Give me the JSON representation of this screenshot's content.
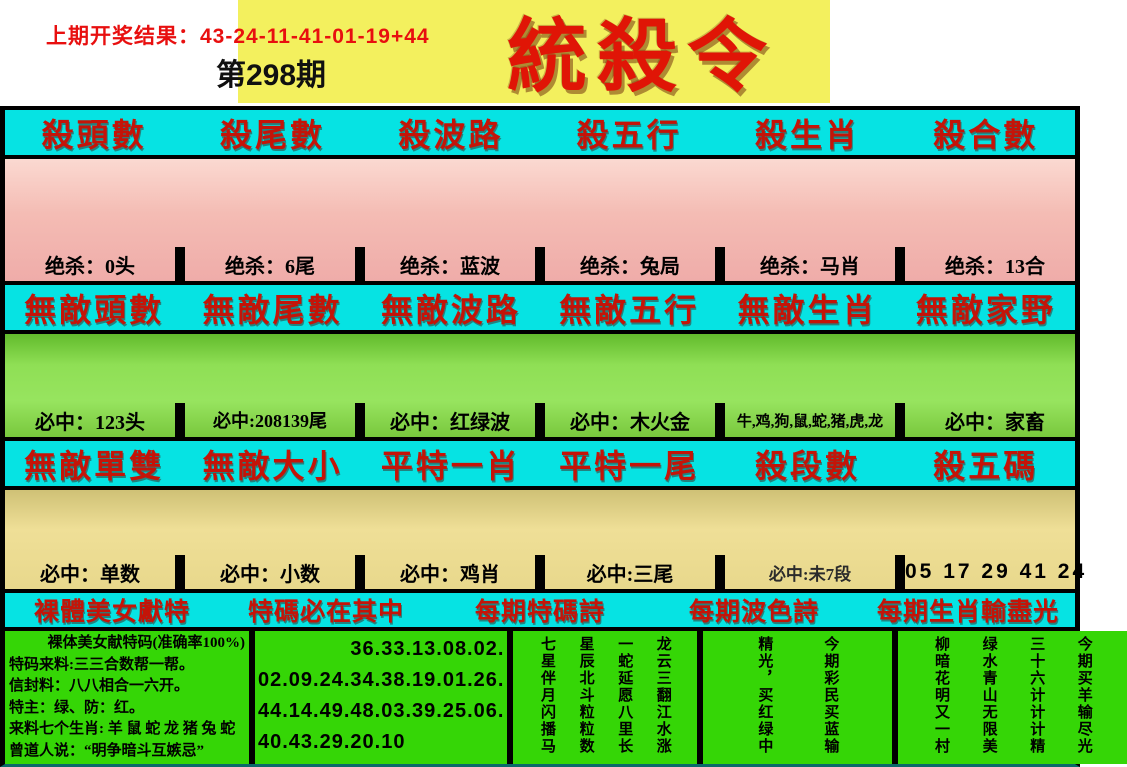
{
  "header": {
    "last_result": "上期开奖结果：43-24-11-41-01-19+44",
    "issue": "第298期",
    "title": "統殺令"
  },
  "colors": {
    "accent_red": "#e80f0f",
    "header_text_red": "#c41408",
    "cyan_row": "#06e3e3",
    "pink_band": "#f4bcb4",
    "green_band": "#8fdf55",
    "yellow_band": "#e8d88c",
    "bottom_green": "#35d606",
    "title_background_yellow": "#f3f05e"
  },
  "kill": {
    "headers": [
      "殺頭數",
      "殺尾數",
      "殺波路",
      "殺五行",
      "殺生肖",
      "殺合數"
    ],
    "values": [
      "绝杀：0头",
      "绝杀：6尾",
      "绝杀：蓝波",
      "绝杀：兔局",
      "绝杀：马肖",
      "绝杀：13合"
    ]
  },
  "wudi": {
    "headers": [
      "無敵頭數",
      "無敵尾數",
      "無敵波路",
      "無敵五行",
      "無敵生肖",
      "無敵家野"
    ],
    "values": [
      "必中：123头",
      "必中:208139尾",
      "必中：红绿波",
      "必中：木火金",
      "牛,鸡,狗,鼠,蛇,猪,虎,龙",
      "必中：家畜"
    ]
  },
  "third": {
    "headers": [
      "無敵單雙",
      "無敵大小",
      "平特一肖",
      "平特一尾",
      "殺段數",
      "殺五碼"
    ],
    "values": [
      "必中：单数",
      "必中：小数",
      "必中：鸡肖",
      "必中:三尾",
      "必中:未7段",
      "05 17 29 41 24"
    ]
  },
  "bottom": {
    "headers": [
      "裸體美女獻特",
      "特碼必在其中",
      "每期特碼詩",
      "每期波色詩",
      "每期生肖輸盡光"
    ],
    "beauty_lines": [
      "裸体美女献特码(准确率100%)",
      "特码来料:三三合数帮一帮。",
      "信封料：八八相合一六开。",
      "特主：绿、防：红。",
      "来料七个生肖: 羊 鼠 蛇 龙 猪 兔 蛇",
      "曾道人说：“明争暗斗互嫉忌”"
    ],
    "number_lines": [
      "36.33.13.08.02.",
      "02.09.24.34.38.19.01.26.",
      "44.14.49.48.03.39.25.06.",
      "40.43.29.20.10"
    ],
    "special_poem": [
      "七星伴月闪播马",
      "星辰北斗粒粒数",
      "一蛇延愿八里长",
      "龙云三翻江水涨"
    ],
    "color_poem": [
      "精光，买红绿中",
      "今期彩民买蓝输"
    ],
    "zodiac_poem": [
      "柳暗花明又一村",
      "绿水青山无限美",
      "三十六计计计精",
      "今期买羊输尽光"
    ]
  }
}
